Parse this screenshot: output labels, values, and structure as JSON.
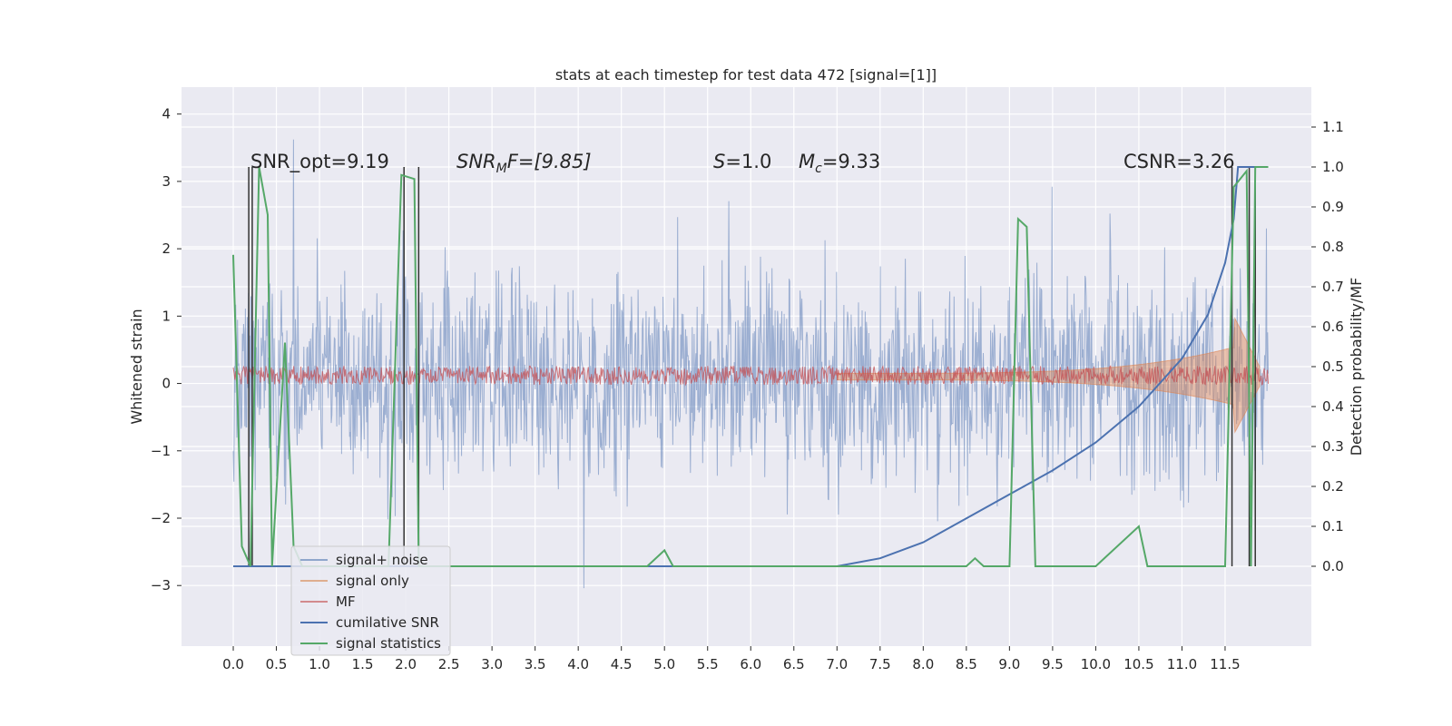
{
  "chart_data": {
    "type": "line",
    "title": "stats at each timestep for test data 472 [signal=[1]]",
    "xlabel": "",
    "ylabel": "Whitened strain",
    "y2label": "Detection probability/MF",
    "xlim": [
      -0.6,
      12.5
    ],
    "ylim": [
      -3.9,
      4.4
    ],
    "y2lim": [
      -0.2,
      1.2
    ],
    "x_ticks": [
      "0.0",
      "0.5",
      "1.0",
      "1.5",
      "2.0",
      "2.5",
      "3.0",
      "3.5",
      "4.0",
      "4.5",
      "5.0",
      "5.5",
      "6.0",
      "6.5",
      "7.0",
      "7.5",
      "8.0",
      "8.5",
      "9.0",
      "9.5",
      "10.0",
      "10.5",
      "11.0",
      "11.5"
    ],
    "y_ticks": [
      "4",
      "3",
      "2",
      "1",
      "0",
      "−1",
      "−2",
      "−3"
    ],
    "y2_ticks": [
      "1.1",
      "1.0",
      "0.9",
      "0.8",
      "0.7",
      "0.6",
      "0.5",
      "0.4",
      "0.3",
      "0.2",
      "0.1",
      "0.0"
    ],
    "grid": true,
    "legend_position": "bottom-left",
    "annotations": {
      "snr_opt": "SNR_opt=9.19",
      "snr_mf_main": "SNR",
      "snr_mf_sub": "M",
      "snr_mf_rest": "F=[9.85]",
      "s_var": "S",
      "s_val": "=1.0",
      "mc_var": "M",
      "mc_sub": "c",
      "mc_val": "=9.33",
      "csnr": "CSNR=3.26"
    },
    "series": [
      {
        "name": "signal+ noise",
        "color": "#4c72b0",
        "description": "dense whitened noise, amplitude roughly within ±2.5 with spikes to about ±3.5, 0 to 12 s"
      },
      {
        "name": "signal only",
        "color": "#dd8452",
        "description": "chirp waveform, near 0 amplitude until ~7 s then growing to about ±1 at ~11.7 s"
      },
      {
        "name": "MF",
        "color": "#c44e52",
        "description": "matched filter output band around 0 to 0.25"
      },
      {
        "name": "cumilative SNR",
        "color": "#4c72b0",
        "x": [
          0,
          7.0,
          7.5,
          8.0,
          8.5,
          9.0,
          9.5,
          10.0,
          10.5,
          11.0,
          11.3,
          11.5,
          11.6,
          11.65
        ],
        "y2": [
          0,
          0,
          0.02,
          0.06,
          0.12,
          0.18,
          0.24,
          0.31,
          0.4,
          0.52,
          0.63,
          0.76,
          0.87,
          1.0
        ]
      },
      {
        "name": "signal statistics",
        "color": "#55a868",
        "x": [
          0.0,
          0.1,
          0.2,
          0.3,
          0.4,
          0.45,
          0.6,
          0.7,
          0.8,
          1.8,
          1.95,
          2.1,
          2.15,
          2.2,
          4.8,
          5.0,
          5.1,
          8.5,
          8.6,
          8.7,
          9.0,
          9.1,
          9.2,
          9.3,
          9.4,
          10.0,
          10.5,
          10.6,
          11.5,
          11.6,
          11.75,
          11.8,
          11.85,
          11.95,
          12.0
        ],
        "y2": [
          0.78,
          0.05,
          0.0,
          1.0,
          0.88,
          0.0,
          0.56,
          0.05,
          0.0,
          0.0,
          0.98,
          0.97,
          0.0,
          0.0,
          0.0,
          0.04,
          0.0,
          0.0,
          0.02,
          0.0,
          0.0,
          0.87,
          0.85,
          0.0,
          0.0,
          0.0,
          0.1,
          0.0,
          0.0,
          0.95,
          0.99,
          0.0,
          1.0,
          1.0,
          1.0
        ]
      }
    ],
    "detections_x": [
      0.18,
      0.22,
      1.98,
      2.15,
      11.58,
      11.78,
      11.85
    ]
  },
  "legend": {
    "labels": [
      "signal+ noise",
      "signal only",
      "MF",
      "cumilative SNR",
      "signal statistics"
    ],
    "colors": [
      "#8fa6cc",
      "#dfae8f",
      "#d38a8d",
      "#4c72b0",
      "#55a868"
    ]
  }
}
